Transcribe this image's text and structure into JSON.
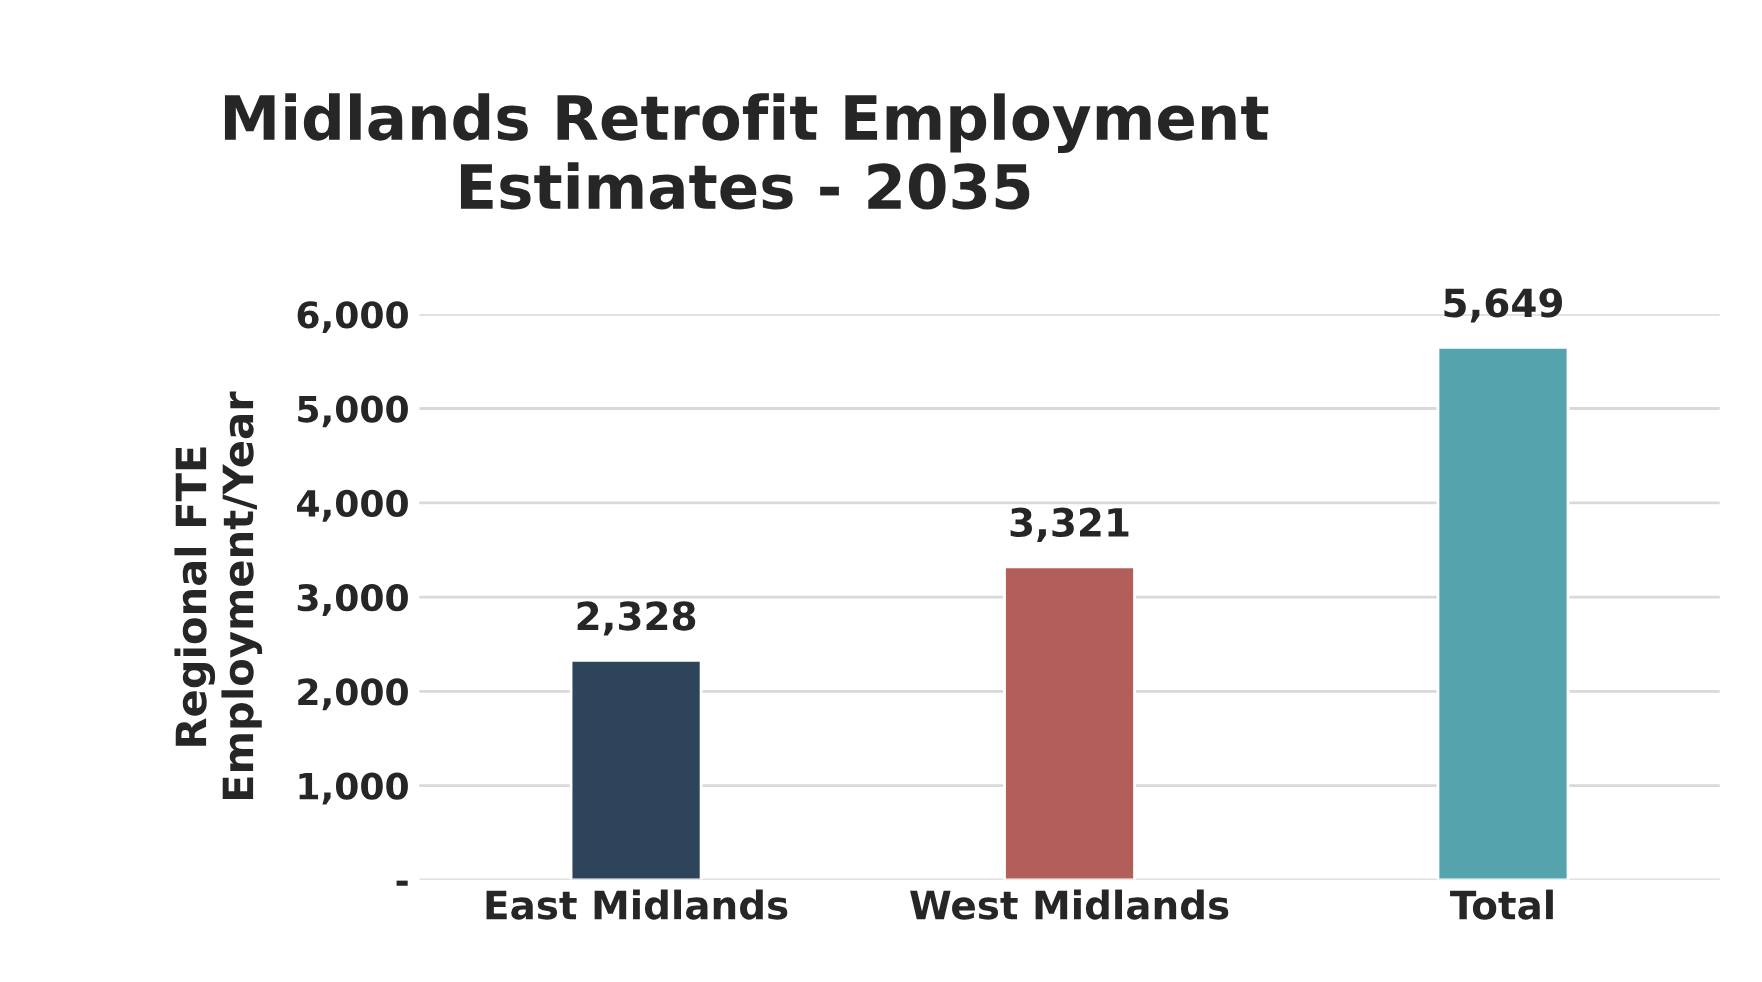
{
  "chart_data": {
    "type": "bar",
    "title": "Midlands Retrofit Employment\nEstimates - 2035",
    "ylabel": "Regional FTE\nEmployment/Year",
    "categories": [
      "East Midlands",
      "West Midlands",
      "Total"
    ],
    "values": [
      2328,
      3321,
      5649
    ],
    "colors": [
      "#264461",
      "#c0504d",
      "#46aebc"
    ],
    "data_labels": true,
    "value_labels": [
      "2,328",
      "3,321",
      "5,649"
    ],
    "ylim": [
      0,
      6000
    ],
    "yticks": [
      {
        "value": 0,
        "label": "-"
      },
      {
        "value": 1000,
        "label": "1,000"
      },
      {
        "value": 2000,
        "label": "2,000"
      },
      {
        "value": 3000,
        "label": "3,000"
      },
      {
        "value": 4000,
        "label": "4,000"
      },
      {
        "value": 5000,
        "label": "5,000"
      },
      {
        "value": 6000,
        "label": "6,000"
      }
    ],
    "grid": "y",
    "legend": false
  }
}
